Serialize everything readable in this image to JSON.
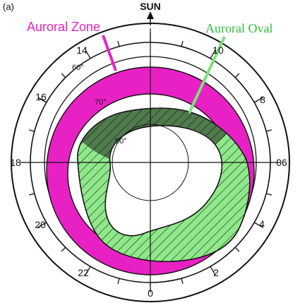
{
  "panel_label": "(a)",
  "sun_label": "SUN",
  "labels": {
    "auroral_zone": "Auroral Zone",
    "auroral_oval": "Auroral Oval"
  },
  "hours": [
    "14",
    "10",
    "16",
    "8",
    "18",
    "06",
    "20",
    "4",
    "22",
    "2",
    "0"
  ],
  "latitudes": [
    "60°",
    "70°",
    "80°"
  ],
  "colors": {
    "auroral_zone": "#e821c4",
    "auroral_oval": "#8fe88a",
    "auroral_oval_overlap": "#4f7a4c",
    "auroral_zone_label": "#e821c4",
    "auroral_oval_label": "#2fbf3a",
    "outline": "#111111"
  }
}
